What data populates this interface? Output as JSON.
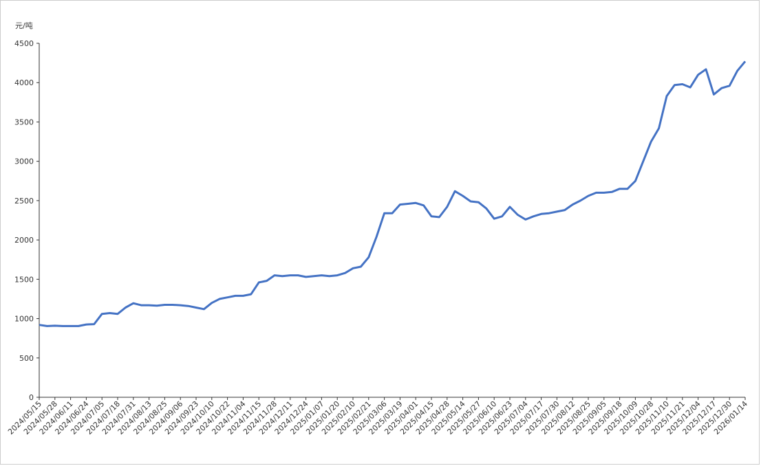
{
  "chart_data": {
    "type": "line",
    "y_unit": "元/吨",
    "categories": [
      "2024/05/15",
      null,
      "2024/05/28",
      null,
      "2024/06/11",
      null,
      "2024/06/24",
      null,
      "2024/07/05",
      null,
      "2024/07/18",
      null,
      "2024/07/31",
      null,
      "2024/08/13",
      null,
      "2024/08/25",
      null,
      "2024/09/06",
      null,
      "2024/09/23",
      null,
      "2024/10/10",
      null,
      "2024/10/22",
      null,
      "2024/11/04",
      null,
      "2024/11/15",
      null,
      "2024/11/28",
      null,
      "2024/12/11",
      null,
      "2024/12/24",
      null,
      "2025/01/07",
      null,
      "2025/01/20",
      null,
      "2025/02/10",
      null,
      "2025/02/21",
      null,
      "2025/03/06",
      null,
      "2025/03/19",
      null,
      "2025/04/01",
      null,
      "2025/04/15",
      null,
      "2025/04/28",
      null,
      "2025/05/14",
      null,
      "2025/05/27",
      null,
      "2025/06/10",
      null,
      "2025/06/23",
      null,
      "2025/07/04",
      null,
      "2025/07/17",
      null,
      "2025/07/30",
      null,
      "2025/08/12",
      null,
      "2025/08/25",
      null,
      "2025/09/05",
      null,
      "2025/09/18",
      null,
      "2025/10/09",
      null,
      "2025/10/28",
      null,
      "2025/11/10",
      null,
      "2025/11/21",
      null,
      "2025/12/04",
      null,
      "2025/12/17",
      null,
      "2025/12/30",
      null,
      "2026/01/14"
    ],
    "series": [
      {
        "color": "#4472c4",
        "values": [
          920,
          905,
          910,
          905,
          905,
          905,
          925,
          930,
          1060,
          1070,
          1060,
          1140,
          1195,
          1170,
          1170,
          1165,
          1175,
          1175,
          1170,
          1160,
          1140,
          1120,
          1200,
          1250,
          1270,
          1290,
          1290,
          1310,
          1460,
          1480,
          1550,
          1540,
          1550,
          1550,
          1530,
          1540,
          1550,
          1540,
          1550,
          1580,
          1640,
          1660,
          1780,
          2040,
          2340,
          2340,
          2450,
          2460,
          2470,
          2440,
          2300,
          2290,
          2420,
          2620,
          2560,
          2490,
          2480,
          2400,
          2270,
          2300,
          2420,
          2320,
          2260,
          2300,
          2330,
          2340,
          2360,
          2380,
          2450,
          2500,
          2560,
          2600,
          2600,
          2610,
          2650,
          2650,
          2750,
          3000,
          3250,
          3420,
          3830,
          3970,
          3980,
          3940,
          4100,
          4170,
          3850,
          3930,
          3960,
          4150,
          4270
        ]
      }
    ],
    "ylim": [
      0,
      4500
    ],
    "yticks": [
      0,
      500,
      1000,
      1500,
      2000,
      2500,
      3000,
      3500,
      4000,
      4500
    ]
  }
}
